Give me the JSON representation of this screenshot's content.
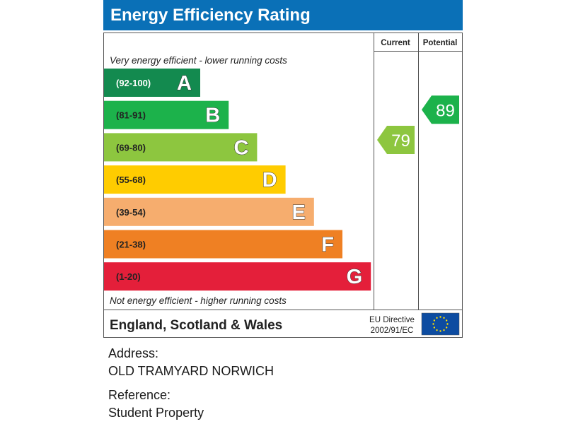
{
  "chart_data": {
    "type": "bar",
    "title": "Energy Efficiency Rating",
    "columns": {
      "current": "Current",
      "potential": "Potential"
    },
    "top_note": "Very energy efficient - lower running costs",
    "bottom_note": "Not energy efficient - higher running costs",
    "bands": [
      {
        "range": "(92-100)",
        "letter": "A",
        "color": "#138a4f"
      },
      {
        "range": "(81-91)",
        "letter": "B",
        "color": "#1cb24b"
      },
      {
        "range": "(69-80)",
        "letter": "C",
        "color": "#8dc63f"
      },
      {
        "range": "(55-68)",
        "letter": "D",
        "color": "#ffcc00"
      },
      {
        "range": "(39-54)",
        "letter": "E",
        "color": "#f6ad6e"
      },
      {
        "range": "(21-38)",
        "letter": "F",
        "color": "#ef8023"
      },
      {
        "range": "(1-20)",
        "letter": "G",
        "color": "#e41f3a"
      }
    ],
    "current_rating": 79,
    "potential_rating": 89,
    "current_color": "#8dc63f",
    "potential_color": "#1cb24b",
    "footer_region": "England, Scotland & Wales",
    "directive_line1": "EU Directive",
    "directive_line2": "2002/91/EC",
    "header_color": "#0a70b7",
    "eu_flag_color": "#0d4ca1",
    "eu_star_color": "#ffdd00"
  },
  "address": {
    "label": "Address:",
    "value": "OLD TRAMYARD NORWICH"
  },
  "reference": {
    "label": "Reference:",
    "value": "Student Property"
  }
}
